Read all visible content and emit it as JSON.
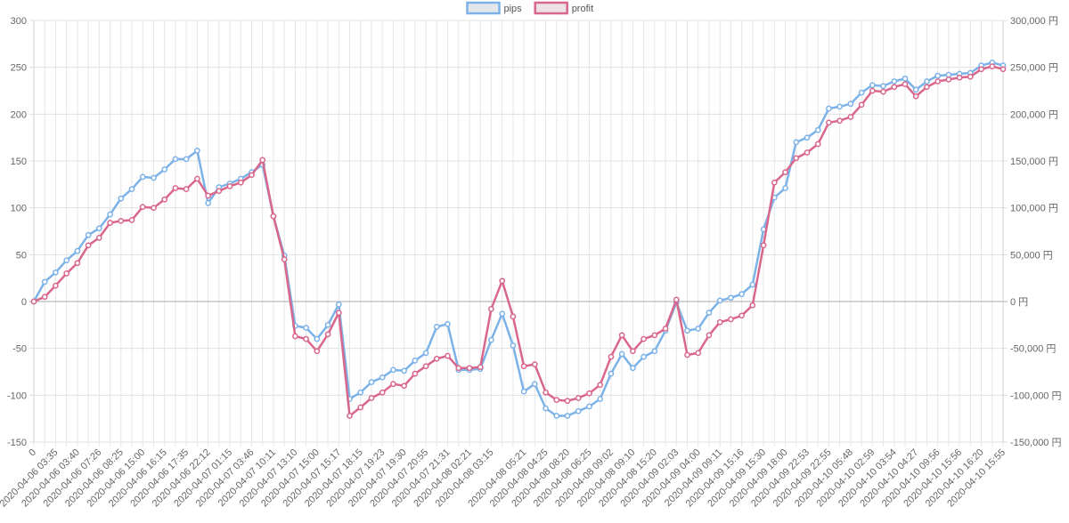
{
  "chart_data": {
    "type": "line",
    "legend": {
      "position": "top-center",
      "items": [
        {
          "name": "pips",
          "stroke": "#7cb2e8",
          "fill": "#e3e7eb"
        },
        {
          "name": "profit",
          "stroke": "#d9668b",
          "fill": "#ece2e6"
        }
      ]
    },
    "y_left": {
      "min": -150,
      "max": 300,
      "ticks": [
        "300",
        "250",
        "200",
        "150",
        "100",
        "50",
        "0",
        "-50",
        "-100",
        "-150"
      ]
    },
    "y_right": {
      "min": -150000,
      "max": 300000,
      "ticks": [
        "300,000 円",
        "250,000 円",
        "200,000 円",
        "150,000 円",
        "100,000 円",
        "50,000 円",
        "0 円",
        "-50,000 円",
        "-100,000 円",
        "-150,000 円"
      ]
    },
    "x_tick_labels": [
      "0",
      "2020-04-06 03:35",
      "2020-04-06 03:40",
      "2020-04-06 07:26",
      "2020-04-06 08:25",
      "2020-04-06 15:00",
      "2020-04-06 16:15",
      "2020-04-06 17:35",
      "2020-04-06 22:12",
      "2020-04-07 01:15",
      "2020-04-07 03:46",
      "2020-04-07 10:11",
      "2020-04-07 13:10",
      "2020-04-07 15:00",
      "2020-04-07 15:17",
      "2020-04-07 18:15",
      "2020-04-07 19:23",
      "2020-04-07 19:30",
      "2020-04-07 20:55",
      "2020-04-07 21:31",
      "2020-04-08 02:21",
      "2020-04-08 03:15",
      "2020-04-08 05:21",
      "2020-04-08 04:25",
      "2020-04-08 08:20",
      "2020-04-08 06:25",
      "2020-04-08 09:02",
      "2020-04-08 09:10",
      "2020-04-08 15:20",
      "2020-04-09 02:03",
      "2020-04-09 04:00",
      "2020-04-09 09:11",
      "2020-04-09 15:16",
      "2020-04-09 15:30",
      "2020-04-09 18:00",
      "2020-04-09 22:53",
      "2020-04-09 22:55",
      "2020-04-10 05:48",
      "2020-04-10 02:59",
      "2020-04-10 03:54",
      "2020-04-10 04:27",
      "2020-04-10 09:56",
      "2020-04-10 15:56",
      "2020-04-10 16:20",
      "2020-04-10 15:55"
    ],
    "series": [
      {
        "name": "pips",
        "axis": "left",
        "color": "#7cb2e8",
        "values": [
          0,
          21,
          31,
          44,
          54,
          71,
          78,
          93,
          110,
          120,
          133,
          132,
          141,
          152,
          152,
          161,
          105,
          122,
          126,
          131,
          138,
          146,
          91,
          49,
          -26,
          -28,
          -40,
          -25,
          -3,
          -104,
          -97,
          -86,
          -81,
          -73,
          -74,
          -63,
          -55,
          -27,
          -24,
          -73,
          -73,
          -72,
          -41,
          -13,
          -47,
          -96,
          -88,
          -114,
          -122,
          -122,
          -117,
          -112,
          -104,
          -77,
          -56,
          -71,
          -59,
          -53,
          -31,
          -1,
          -31,
          -29,
          -12,
          1,
          4,
          8,
          18,
          77,
          111,
          121,
          170,
          175,
          183,
          206,
          208,
          211,
          223,
          231,
          230,
          235,
          238,
          226,
          235,
          241,
          242,
          243,
          244,
          252,
          255,
          252
        ]
      },
      {
        "name": "profit",
        "axis": "right",
        "color": "#d9668b",
        "values": [
          0,
          5000,
          17000,
          30000,
          41000,
          60000,
          68000,
          84000,
          86000,
          87000,
          101000,
          100000,
          109000,
          121000,
          120000,
          131000,
          113000,
          118000,
          123000,
          127000,
          135000,
          151000,
          91000,
          45000,
          -37000,
          -40000,
          -53000,
          -35000,
          -12000,
          -122000,
          -113000,
          -103000,
          -97000,
          -88000,
          -90000,
          -77000,
          -69000,
          -61000,
          -58000,
          -71000,
          -71000,
          -70000,
          -8000,
          22000,
          -16000,
          -69000,
          -67000,
          -97000,
          -105000,
          -106000,
          -103000,
          -98000,
          -89000,
          -59000,
          -36000,
          -53000,
          -40000,
          -36000,
          -29000,
          2000,
          -57000,
          -55000,
          -36000,
          -22000,
          -19000,
          -15000,
          -4000,
          60000,
          127000,
          138000,
          153000,
          159000,
          168000,
          191000,
          193000,
          197000,
          210000,
          225000,
          224000,
          229000,
          232000,
          219000,
          229000,
          235000,
          237000,
          239000,
          240000,
          248000,
          251000,
          248000
        ]
      }
    ]
  }
}
